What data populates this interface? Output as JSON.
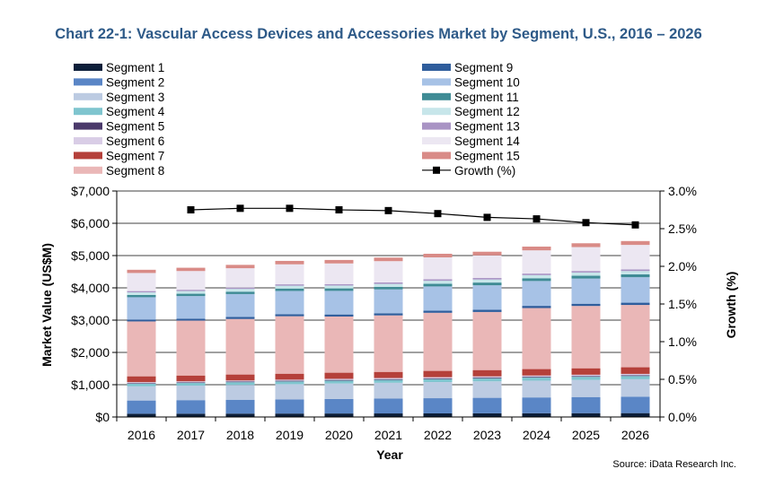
{
  "title": "Chart 22-1: Vascular Access Devices and Accessories Market by Segment, U.S., 2016 – 2026",
  "source": "Source: iData Research Inc.",
  "chart_data": {
    "type": "bar",
    "stacked": true,
    "categories": [
      "2016",
      "2017",
      "2018",
      "2019",
      "2020",
      "2021",
      "2022",
      "2023",
      "2024",
      "2025",
      "2026"
    ],
    "xlabel": "Year",
    "ylabel": "Market Value (US$M)",
    "y2label": "Growth (%)",
    "ylim": [
      0,
      7000
    ],
    "y2lim": [
      0,
      3.0
    ],
    "y_ticks": [
      "$0",
      "$1,000",
      "$2,000",
      "$3,000",
      "$4,000",
      "$5,000",
      "$6,000",
      "$7,000"
    ],
    "y2_ticks": [
      "0.0%",
      "0.5%",
      "1.0%",
      "1.5%",
      "2.0%",
      "2.5%",
      "3.0%"
    ],
    "grid": "horizontal major",
    "legend_position": "top",
    "series": [
      {
        "name": "Segment 1",
        "color": "#0d1f3a",
        "values": [
          100,
          102,
          104,
          106,
          108,
          110,
          112,
          114,
          116,
          118,
          120
        ]
      },
      {
        "name": "Segment 2",
        "color": "#5a86c6",
        "values": [
          410,
          420,
          430,
          440,
          450,
          460,
          470,
          480,
          490,
          500,
          510
        ]
      },
      {
        "name": "Segment 3",
        "color": "#bccbe2",
        "values": [
          440,
          450,
          460,
          470,
          480,
          490,
          500,
          510,
          520,
          530,
          540
        ]
      },
      {
        "name": "Segment 4",
        "color": "#7fc5cf",
        "values": [
          80,
          82,
          84,
          86,
          88,
          90,
          92,
          94,
          96,
          98,
          100
        ]
      },
      {
        "name": "Segment 5",
        "color": "#4b3a6b",
        "values": [
          20,
          20,
          21,
          21,
          22,
          22,
          23,
          23,
          24,
          24,
          25
        ]
      },
      {
        "name": "Segment 6",
        "color": "#d9cde6",
        "values": [
          30,
          31,
          32,
          33,
          34,
          35,
          36,
          37,
          38,
          39,
          40
        ]
      },
      {
        "name": "Segment 7",
        "color": "#b5403a",
        "values": [
          180,
          180,
          185,
          185,
          190,
          190,
          195,
          195,
          200,
          200,
          205
        ]
      },
      {
        "name": "Segment 8",
        "color": "#eab7b7",
        "values": [
          1700,
          1700,
          1720,
          1780,
          1740,
          1750,
          1800,
          1800,
          1890,
          1930,
          1930
        ]
      },
      {
        "name": "Segment 9",
        "color": "#2f5d9c",
        "values": [
          60,
          61,
          62,
          63,
          64,
          65,
          66,
          67,
          68,
          69,
          70
        ]
      },
      {
        "name": "Segment 10",
        "color": "#a7c2e6",
        "values": [
          690,
          700,
          710,
          720,
          730,
          740,
          750,
          760,
          770,
          780,
          790
        ]
      },
      {
        "name": "Segment 11",
        "color": "#3f8b95",
        "values": [
          70,
          72,
          74,
          76,
          78,
          80,
          82,
          84,
          86,
          88,
          90
        ]
      },
      {
        "name": "Segment 12",
        "color": "#c7e6ea",
        "values": [
          80,
          82,
          84,
          86,
          88,
          90,
          92,
          94,
          96,
          98,
          100
        ]
      },
      {
        "name": "Segment 13",
        "color": "#a994c4",
        "values": [
          40,
          41,
          42,
          43,
          44,
          45,
          46,
          47,
          48,
          49,
          50
        ]
      },
      {
        "name": "Segment 14",
        "color": "#ece7f2",
        "values": [
          560,
          580,
          600,
          620,
          640,
          660,
          680,
          700,
          720,
          740,
          760
        ]
      },
      {
        "name": "Segment 15",
        "color": "#d98b87",
        "values": [
          100,
          102,
          104,
          106,
          108,
          110,
          112,
          114,
          116,
          118,
          120
        ]
      }
    ],
    "line_series": {
      "name": "Growth (%)",
      "axis": "secondary",
      "color": "#000000",
      "values": [
        null,
        2.75,
        2.77,
        2.77,
        2.75,
        2.74,
        2.7,
        2.65,
        2.63,
        2.58,
        2.55
      ]
    },
    "legend_order": [
      [
        "Segment 1",
        "Segment 9"
      ],
      [
        "Segment 2",
        "Segment 10"
      ],
      [
        "Segment 3",
        "Segment 11"
      ],
      [
        "Segment 4",
        "Segment 12"
      ],
      [
        "Segment 5",
        "Segment 13"
      ],
      [
        "Segment 6",
        "Segment 14"
      ],
      [
        "Segment 7",
        "Segment 15"
      ],
      [
        "Segment 8",
        "Growth (%)"
      ]
    ]
  }
}
